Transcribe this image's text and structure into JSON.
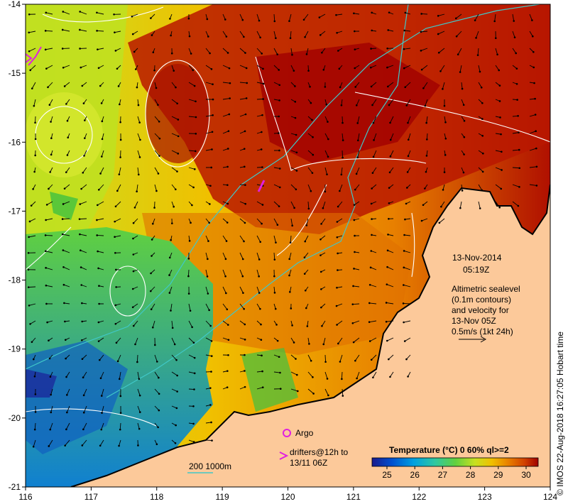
{
  "map": {
    "date": "13-Nov-2014",
    "time": "05:19Z",
    "info_lines": [
      "Altimetric sealevel",
      "(0.1m contours)",
      "and velocity for",
      "13-Nov 05Z",
      "0.5m/s (1kt 24h)"
    ],
    "credit": "© IMOS 22-Aug-2018 16:27:05 Hobart time",
    "lon_ticks": [
      "116",
      "117",
      "118",
      "119",
      "120",
      "121",
      "122",
      "123",
      "124"
    ],
    "lat_ticks": [
      "-14",
      "-15",
      "-16",
      "-17",
      "-18",
      "-19",
      "-20",
      "-21"
    ],
    "legend": {
      "argo": "Argo",
      "drifters_1": "drifters@12h to",
      "drifters_2": "13/11 06Z",
      "depth": "200  1000m"
    },
    "colorbar": {
      "title": "Temperature (°C) 0 60% ql>=2",
      "ticks": [
        "25",
        "26",
        "27",
        "28",
        "29",
        "30"
      ],
      "colors": [
        "#1a1a8c",
        "#0050d0",
        "#00a0e0",
        "#30c8a0",
        "#60d040",
        "#c8e020",
        "#f0c000",
        "#e88000",
        "#d04000",
        "#a00000"
      ]
    },
    "colors": {
      "land": "#fcc99a",
      "argo": "#e020e0",
      "drifter": "#e020e0",
      "isobath": "#40c8c8",
      "contour": "#ffffff"
    }
  }
}
